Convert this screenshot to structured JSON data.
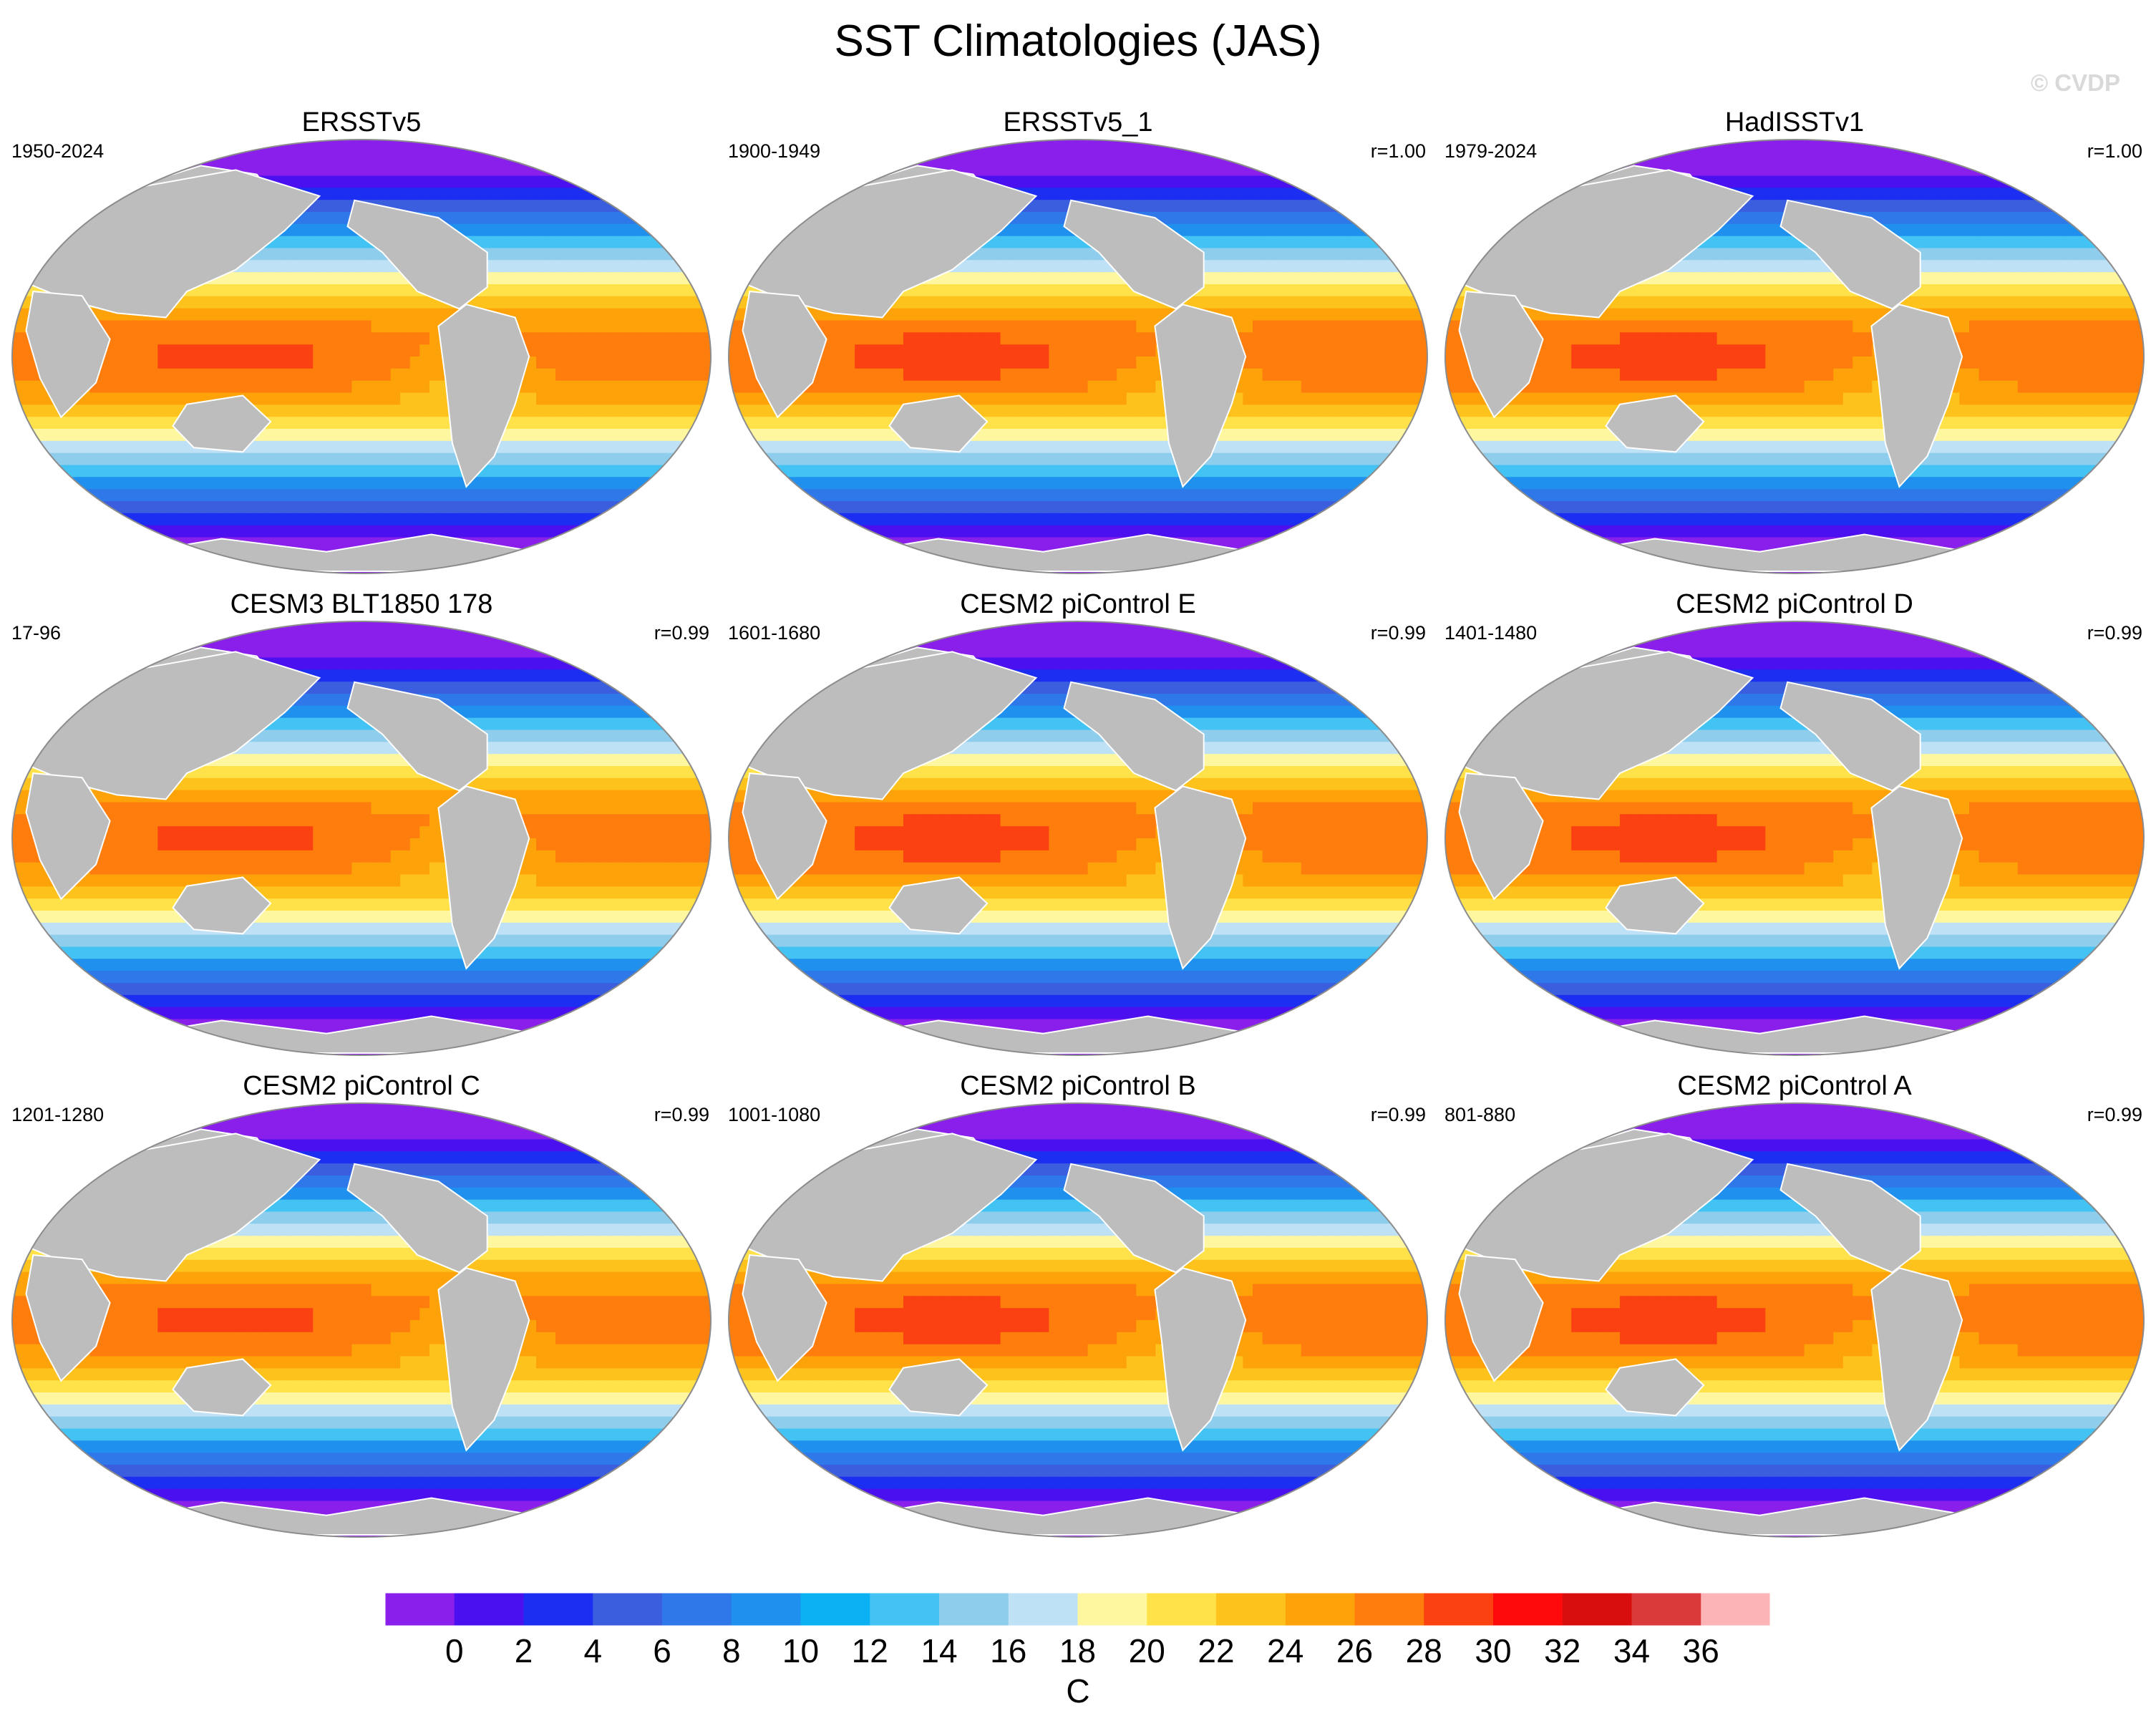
{
  "chart_data": {
    "type": "heatmap",
    "title": "SST Climatologies (JAS)",
    "watermark": "© CVDP",
    "colorbar": {
      "units": "C",
      "tick_labels": [
        "0",
        "2",
        "4",
        "6",
        "8",
        "10",
        "12",
        "14",
        "16",
        "18",
        "20",
        "22",
        "24",
        "26",
        "28",
        "30",
        "32",
        "34",
        "36"
      ],
      "levels": [
        -1,
        0,
        1,
        2,
        3,
        4,
        5,
        6,
        7,
        8,
        9,
        10,
        11,
        12,
        13,
        14,
        15,
        16,
        17,
        18,
        19,
        20,
        21,
        22,
        23,
        24,
        25,
        26,
        27,
        28,
        29,
        30,
        31,
        32,
        33,
        34,
        35,
        36,
        37
      ],
      "colors": [
        "#8a1eea",
        "#4b10f0",
        "#1c2ef2",
        "#3a5edd",
        "#2e78ea",
        "#1f90ee",
        "#0bb1f2",
        "#42c3f4",
        "#8ecdeb",
        "#bfe1f5",
        "#fff6a0",
        "#ffe24a",
        "#fdc21c",
        "#fea20a",
        "#fe7d0c",
        "#fb4012",
        "#ff0a0a",
        "#d80e0e",
        "#da3a3a",
        "#fcb4b6"
      ]
    },
    "panels": [
      {
        "title": "ERSSTv5",
        "period": "1950-2024",
        "corr": ""
      },
      {
        "title": "ERSSTv5_1",
        "period": "1900-1949",
        "corr": "r=1.00"
      },
      {
        "title": "HadISSTv1",
        "period": "1979-2024",
        "corr": "r=1.00"
      },
      {
        "title": "CESM3 BLT1850 178",
        "period": "17-96",
        "corr": "r=0.99"
      },
      {
        "title": "CESM2 piControl E",
        "period": "1601-1680",
        "corr": "r=0.99"
      },
      {
        "title": "CESM2 piControl D",
        "period": "1401-1480",
        "corr": "r=0.99"
      },
      {
        "title": "CESM2 piControl C",
        "period": "1201-1280",
        "corr": "r=0.99"
      },
      {
        "title": "CESM2 piControl B",
        "period": "1001-1080",
        "corr": "r=0.99"
      },
      {
        "title": "CESM2 piControl A",
        "period": "801-880",
        "corr": "r=0.99"
      }
    ]
  }
}
